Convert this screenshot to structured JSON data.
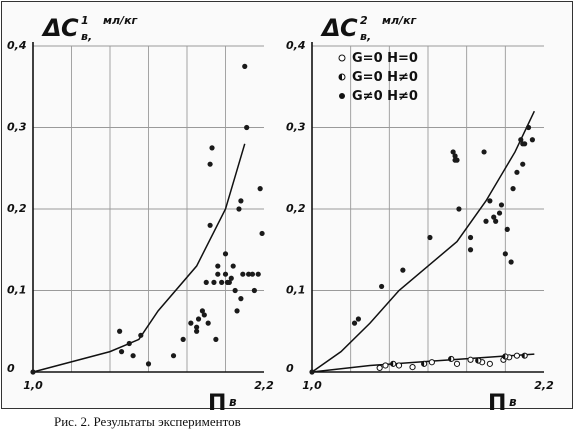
{
  "caption": "Рис. 2. Результаты экспериментов",
  "chart_data": [
    {
      "type": "scatter",
      "ylabel": {
        "delta": "Δ",
        "main": "C",
        "sup": "1",
        "sub": "в,",
        "unit": "мл/кг"
      },
      "xlabel": {
        "main": "П",
        "sub": "в"
      },
      "xlim": [
        1.0,
        2.2
      ],
      "ylim": [
        0,
        0.4
      ],
      "x_ticks": [
        1.0,
        2.2
      ],
      "x_tick_labels": [
        "1,0",
        "2,2"
      ],
      "y_ticks": [
        0,
        0.1,
        0.2,
        0.3,
        0.4
      ],
      "y_tick_labels": [
        "0",
        "0,1",
        "0,2",
        "0,3",
        "0,4"
      ],
      "grid": true,
      "series": [
        {
          "style": "line",
          "x": [
            1.0,
            1.4,
            1.55,
            1.65,
            1.85,
            2.0,
            2.05,
            2.1
          ],
          "y": [
            0.0,
            0.025,
            0.04,
            0.075,
            0.13,
            0.2,
            0.24,
            0.28
          ]
        },
        {
          "style": "filled",
          "x": [
            1.0,
            1.45,
            1.46,
            1.5,
            1.52,
            1.56,
            1.6,
            1.73,
            1.82,
            1.78,
            1.85,
            1.86,
            1.89,
            1.88,
            1.85,
            1.9,
            1.91,
            1.92,
            1.93,
            1.94,
            1.95,
            1.96,
            1.96,
            1.98,
            2.0,
            2.0,
            2.01,
            2.02,
            2.03,
            2.04,
            2.05,
            2.06,
            2.07,
            2.08,
            2.08,
            2.09,
            2.1,
            2.11,
            2.12,
            2.14,
            2.15,
            2.17,
            2.18,
            2.19,
            1.92
          ],
          "y": [
            0.0,
            0.05,
            0.025,
            0.035,
            0.02,
            0.045,
            0.01,
            0.02,
            0.06,
            0.04,
            0.05,
            0.065,
            0.07,
            0.075,
            0.055,
            0.11,
            0.06,
            0.18,
            0.275,
            0.11,
            0.04,
            0.12,
            0.13,
            0.11,
            0.145,
            0.12,
            0.11,
            0.11,
            0.115,
            0.13,
            0.1,
            0.075,
            0.2,
            0.09,
            0.21,
            0.12,
            0.375,
            0.3,
            0.12,
            0.12,
            0.1,
            0.12,
            0.225,
            0.17,
            0.255
          ]
        }
      ]
    },
    {
      "type": "scatter",
      "ylabel": {
        "delta": "Δ",
        "main": "C",
        "sup": "2",
        "sub": "в,",
        "unit": "мл/кг"
      },
      "xlabel": {
        "main": "П",
        "sub": "в"
      },
      "xlim": [
        1.0,
        2.2
      ],
      "ylim": [
        0,
        0.4
      ],
      "x_ticks": [
        1.0,
        2.2
      ],
      "x_tick_labels": [
        "1,0",
        "2,2"
      ],
      "y_ticks": [
        0,
        0.1,
        0.2,
        0.3,
        0.4
      ],
      "y_tick_labels": [
        "0",
        "0,1",
        "0,2",
        "0,3",
        "0,4"
      ],
      "grid": true,
      "legend": [
        {
          "marker": "open",
          "label": "G=0 H=0"
        },
        {
          "marker": "half",
          "label": "G=0 H≠0"
        },
        {
          "marker": "filled",
          "label": "G≠0 H≠0"
        }
      ],
      "legend_position": "top-right",
      "series": [
        {
          "style": "line",
          "x": [
            1.0,
            1.15,
            1.3,
            1.45,
            1.6,
            1.75,
            1.9,
            2.05,
            2.15
          ],
          "y": [
            0.0,
            0.025,
            0.06,
            0.1,
            0.13,
            0.16,
            0.21,
            0.27,
            0.32
          ]
        },
        {
          "style": "line",
          "x": [
            1.0,
            1.3,
            1.6,
            1.9,
            2.15
          ],
          "y": [
            0.0,
            0.008,
            0.013,
            0.018,
            0.022
          ]
        },
        {
          "style": "open",
          "x": [
            1.35,
            1.38,
            1.45,
            1.52,
            1.62,
            1.75,
            1.82,
            1.88,
            1.92,
            1.99,
            2.02,
            2.06
          ],
          "y": [
            0.005,
            0.008,
            0.008,
            0.006,
            0.012,
            0.01,
            0.015,
            0.012,
            0.01,
            0.015,
            0.018,
            0.02
          ]
        },
        {
          "style": "half",
          "x": [
            1.42,
            1.58,
            1.72,
            1.86,
            2.0,
            2.1
          ],
          "y": [
            0.01,
            0.01,
            0.016,
            0.014,
            0.019,
            0.02
          ]
        },
        {
          "style": "filled",
          "x": [
            1.0,
            1.22,
            1.24,
            1.36,
            1.47,
            1.61,
            1.73,
            1.74,
            1.74,
            1.75,
            1.76,
            1.82,
            1.82,
            1.89,
            1.9,
            1.92,
            1.94,
            1.95,
            1.97,
            1.98,
            2.0,
            2.01,
            2.03,
            2.04,
            2.06,
            2.08,
            2.09,
            2.09,
            2.1,
            2.12,
            2.14
          ],
          "y": [
            0.0,
            0.06,
            0.065,
            0.105,
            0.125,
            0.165,
            0.27,
            0.26,
            0.265,
            0.26,
            0.2,
            0.15,
            0.165,
            0.27,
            0.185,
            0.21,
            0.19,
            0.185,
            0.195,
            0.205,
            0.145,
            0.175,
            0.135,
            0.225,
            0.245,
            0.285,
            0.255,
            0.28,
            0.28,
            0.3,
            0.285
          ]
        }
      ]
    }
  ]
}
